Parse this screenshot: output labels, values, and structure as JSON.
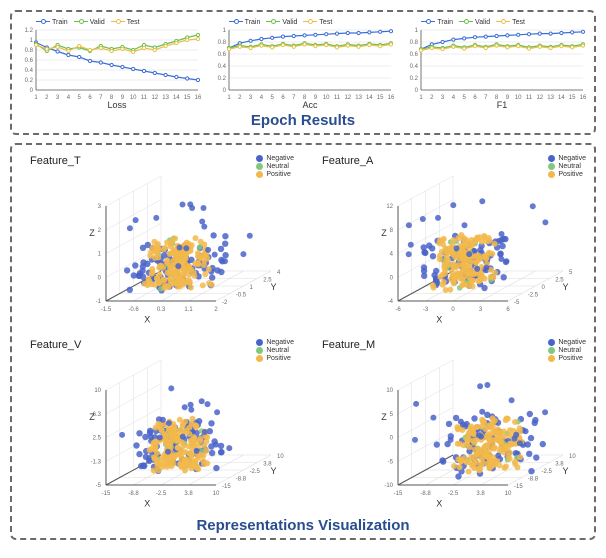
{
  "colors": {
    "train": "#3b6fd6",
    "valid": "#6bbf4f",
    "test": "#e8c14a",
    "neg": "#4a63c9",
    "neu": "#7fc97f",
    "pos": "#f2b84b",
    "axis": "#555555",
    "grid": "#dddddd",
    "tick": "#6a6a6a",
    "title": "#2a4d8f",
    "bg": "#ffffff"
  },
  "epoch": {
    "section_title": "Epoch Results",
    "legend": [
      "Train",
      "Valid",
      "Test"
    ],
    "x_ticks": [
      1,
      2,
      3,
      4,
      5,
      6,
      7,
      8,
      9,
      10,
      11,
      12,
      13,
      14,
      15,
      16
    ],
    "charts": [
      {
        "xlabel": "Loss",
        "ylim": [
          0,
          1.2
        ],
        "yticks": [
          0,
          0.2,
          0.4,
          0.6,
          0.8,
          1,
          1.2
        ],
        "series": {
          "train": [
            0.95,
            0.85,
            0.77,
            0.7,
            0.66,
            0.58,
            0.55,
            0.5,
            0.46,
            0.42,
            0.38,
            0.34,
            0.3,
            0.26,
            0.23,
            0.2
          ],
          "valid": [
            0.92,
            0.78,
            0.9,
            0.82,
            0.85,
            0.78,
            0.88,
            0.82,
            0.86,
            0.8,
            0.9,
            0.85,
            0.92,
            0.98,
            1.05,
            1.1
          ],
          "test": [
            0.9,
            0.82,
            0.86,
            0.78,
            0.88,
            0.8,
            0.84,
            0.78,
            0.82,
            0.76,
            0.84,
            0.8,
            0.88,
            0.94,
            1.0,
            1.02
          ]
        }
      },
      {
        "xlabel": "Acc",
        "ylim": [
          0,
          1.0
        ],
        "yticks": [
          0,
          0.2,
          0.4,
          0.6,
          0.8,
          1
        ],
        "series": {
          "train": [
            0.7,
            0.78,
            0.82,
            0.85,
            0.87,
            0.89,
            0.9,
            0.91,
            0.92,
            0.93,
            0.94,
            0.95,
            0.95,
            0.96,
            0.97,
            0.98
          ],
          "valid": [
            0.7,
            0.74,
            0.72,
            0.76,
            0.73,
            0.77,
            0.74,
            0.78,
            0.75,
            0.77,
            0.73,
            0.76,
            0.74,
            0.77,
            0.75,
            0.78
          ],
          "test": [
            0.68,
            0.72,
            0.7,
            0.74,
            0.71,
            0.75,
            0.72,
            0.76,
            0.73,
            0.75,
            0.71,
            0.74,
            0.72,
            0.75,
            0.73,
            0.76
          ]
        }
      },
      {
        "xlabel": "F1",
        "ylim": [
          0,
          1.0
        ],
        "yticks": [
          0,
          0.2,
          0.4,
          0.6,
          0.8,
          1
        ],
        "series": {
          "train": [
            0.68,
            0.76,
            0.8,
            0.84,
            0.86,
            0.88,
            0.89,
            0.9,
            0.91,
            0.92,
            0.93,
            0.94,
            0.94,
            0.95,
            0.96,
            0.97
          ],
          "valid": [
            0.68,
            0.72,
            0.7,
            0.74,
            0.71,
            0.75,
            0.72,
            0.76,
            0.73,
            0.75,
            0.71,
            0.74,
            0.72,
            0.75,
            0.73,
            0.76
          ],
          "test": [
            0.66,
            0.7,
            0.68,
            0.72,
            0.69,
            0.73,
            0.7,
            0.74,
            0.71,
            0.73,
            0.69,
            0.72,
            0.7,
            0.73,
            0.71,
            0.74
          ]
        }
      }
    ]
  },
  "reps": {
    "section_title": "Representations Visualization",
    "legend": [
      {
        "label": "Negative",
        "color_key": "neg"
      },
      {
        "label": "Neutral",
        "color_key": "neu"
      },
      {
        "label": "Positive",
        "color_key": "pos"
      }
    ],
    "panels": [
      {
        "title": "Feature_T",
        "seed": 1,
        "axes": {
          "x": [
            -1.5,
            2
          ],
          "y": [
            -2,
            4
          ],
          "z": [
            -1,
            3
          ]
        },
        "cluster_center": [
          0.45,
          0.42
        ],
        "cluster_r": 0.28
      },
      {
        "title": "Feature_A",
        "seed": 2,
        "axes": {
          "x": [
            -6,
            6
          ],
          "y": [
            -5,
            5
          ],
          "z": [
            -4,
            12
          ]
        },
        "cluster_center": [
          0.35,
          0.5
        ],
        "cluster_r": 0.26
      },
      {
        "title": "Feature_V",
        "seed": 3,
        "axes": {
          "x": [
            -15,
            10
          ],
          "y": [
            -15,
            10
          ],
          "z": [
            -5,
            10
          ]
        },
        "cluster_center": [
          0.38,
          0.55
        ],
        "cluster_r": 0.25
      },
      {
        "title": "Feature_M",
        "seed": 4,
        "axes": {
          "x": [
            -15,
            10
          ],
          "y": [
            -15,
            10
          ],
          "z": [
            -10,
            10
          ]
        },
        "cluster_center": [
          0.55,
          0.55
        ],
        "cluster_r": 0.3
      }
    ]
  }
}
